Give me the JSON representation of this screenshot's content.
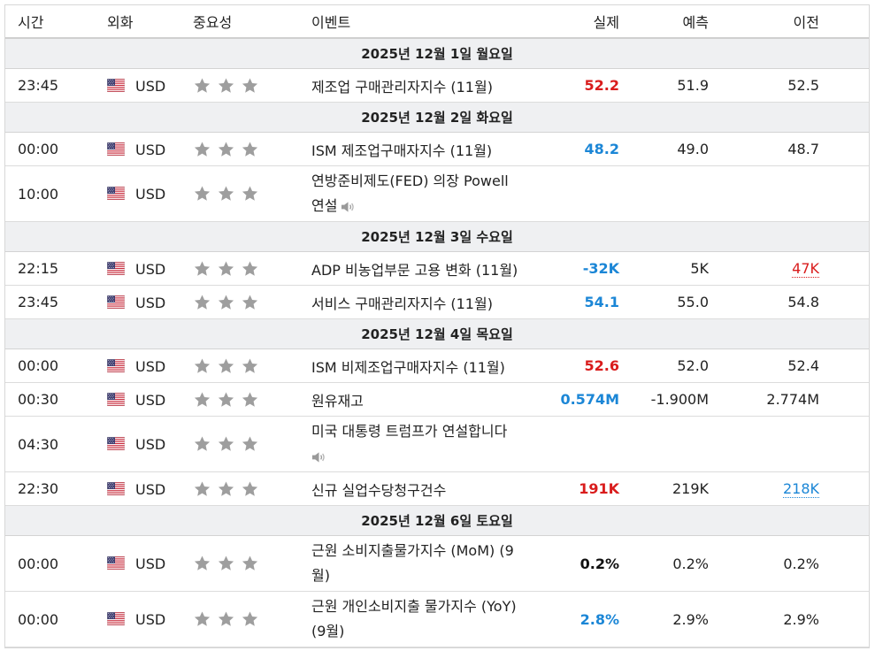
{
  "headers": {
    "time": "시간",
    "currency": "외화",
    "importance": "중요성",
    "event": "이벤트",
    "actual": "실제",
    "forecast": "예측",
    "previous": "이전"
  },
  "colors": {
    "positive": "#d91c1c",
    "negative": "#1b86d6",
    "star": "#9e9e9e",
    "day_bg": "#eff0f2"
  },
  "days": [
    {
      "label": "2025년 12월 1일 월요일"
    },
    {
      "label": "2025년 12월 2일 화요일"
    },
    {
      "label": "2025년 12월 3일 수요일"
    },
    {
      "label": "2025년 12월 4일 목요일"
    },
    {
      "label": "2025년 12월 6일 토요일"
    }
  ],
  "events": [
    {
      "time": "23:45",
      "currency": "USD",
      "event": "제조업 구매관리자지수 (11월)",
      "actual": "52.2",
      "forecast": "51.9",
      "previous": "52.5"
    },
    {
      "time": "00:00",
      "currency": "USD",
      "event": "ISM 제조업구매자지수 (11월)",
      "actual": "48.2",
      "forecast": "49.0",
      "previous": "48.7"
    },
    {
      "time": "10:00",
      "currency": "USD",
      "event_line1": "연방준비제도(FED) 의장 Powell",
      "event_line2": "연설",
      "actual": "",
      "forecast": "",
      "previous": ""
    },
    {
      "time": "22:15",
      "currency": "USD",
      "event": "ADP 비농업부문 고용 변화 (11월)",
      "actual": "-32K",
      "forecast": "5K",
      "previous": "47K"
    },
    {
      "time": "23:45",
      "currency": "USD",
      "event": "서비스 구매관리자지수 (11월)",
      "actual": "54.1",
      "forecast": "55.0",
      "previous": "54.8"
    },
    {
      "time": "00:00",
      "currency": "USD",
      "event": "ISM 비제조업구매자지수 (11월)",
      "actual": "52.6",
      "forecast": "52.0",
      "previous": "52.4"
    },
    {
      "time": "00:30",
      "currency": "USD",
      "event": "원유재고",
      "actual": "0.574M",
      "forecast": "-1.900M",
      "previous": "2.774M"
    },
    {
      "time": "04:30",
      "currency": "USD",
      "event_line1": "미국 대통령 트럼프가 연설합니다",
      "actual": "",
      "forecast": "",
      "previous": ""
    },
    {
      "time": "22:30",
      "currency": "USD",
      "event": "신규 실업수당청구건수",
      "actual": "191K",
      "forecast": "219K",
      "previous": "218K"
    },
    {
      "time": "00:00",
      "currency": "USD",
      "event_line1": "근원 소비지출물가지수 (MoM) (9",
      "event_line2": "월)",
      "actual": "0.2%",
      "forecast": "0.2%",
      "previous": "0.2%"
    },
    {
      "time": "00:00",
      "currency": "USD",
      "event_line1": "근원 개인소비지출 물가지수 (YoY)",
      "event_line2": "(9월)",
      "actual": "2.8%",
      "forecast": "2.9%",
      "previous": "2.9%"
    }
  ]
}
